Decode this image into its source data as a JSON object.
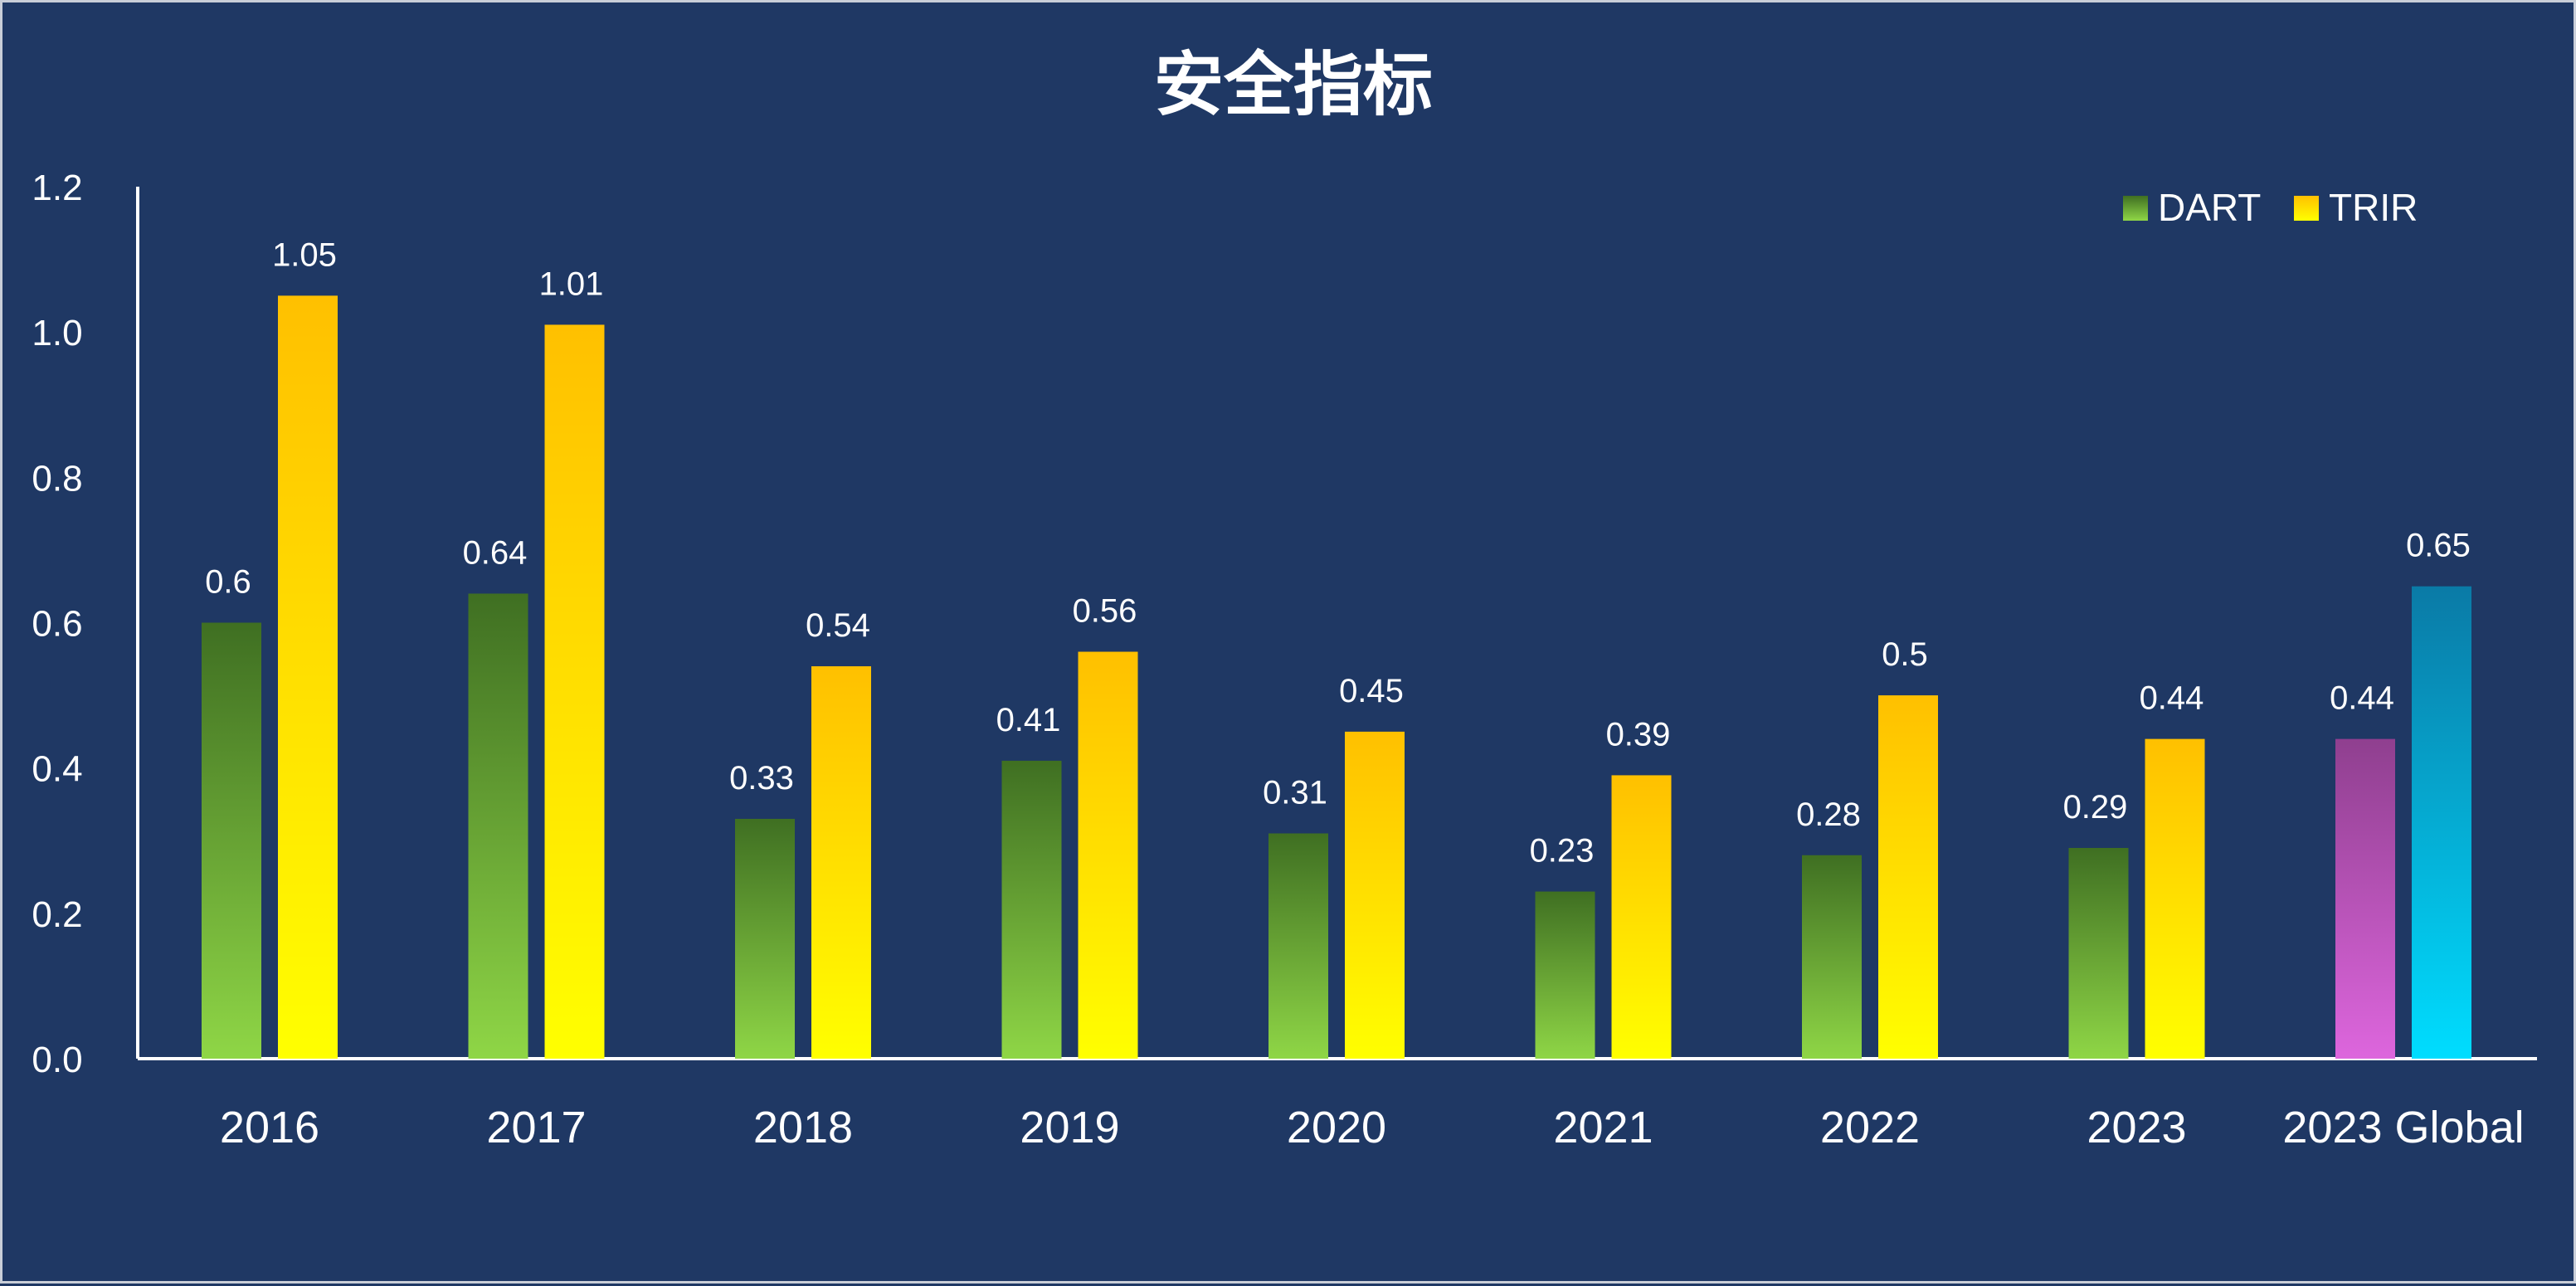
{
  "chart_data": {
    "type": "bar",
    "title": "安全指标",
    "categories": [
      "2016",
      "2017",
      "2018",
      "2019",
      "2020",
      "2021",
      "2022",
      "2023",
      "2023 Global"
    ],
    "series": [
      {
        "name": "DART",
        "values": [
          0.6,
          0.64,
          0.33,
          0.41,
          0.31,
          0.23,
          0.28,
          0.29,
          0.44
        ],
        "gradient": [
          "#3f6f22",
          "#8fd646"
        ],
        "highlight_gradient": [
          "#8f3f8f",
          "#dd66dd"
        ]
      },
      {
        "name": "TRIR",
        "values": [
          1.05,
          1.01,
          0.54,
          0.56,
          0.45,
          0.39,
          0.5,
          0.44,
          0.65
        ],
        "gradient": [
          "#ffc000",
          "#ffff00"
        ],
        "highlight_gradient": [
          "#0a7aa6",
          "#00ddff"
        ]
      }
    ],
    "highlight_category": "2023 Global",
    "y_ticks": [
      "0.0",
      "0.2",
      "0.4",
      "0.6",
      "0.8",
      "1.0",
      "1.2"
    ],
    "ylim": [
      0,
      1.2
    ],
    "xlabel": "",
    "ylabel": "",
    "grid": false,
    "legend_position": "top-right",
    "background_color": "#1f3864",
    "axis_color": "#ffffff"
  }
}
